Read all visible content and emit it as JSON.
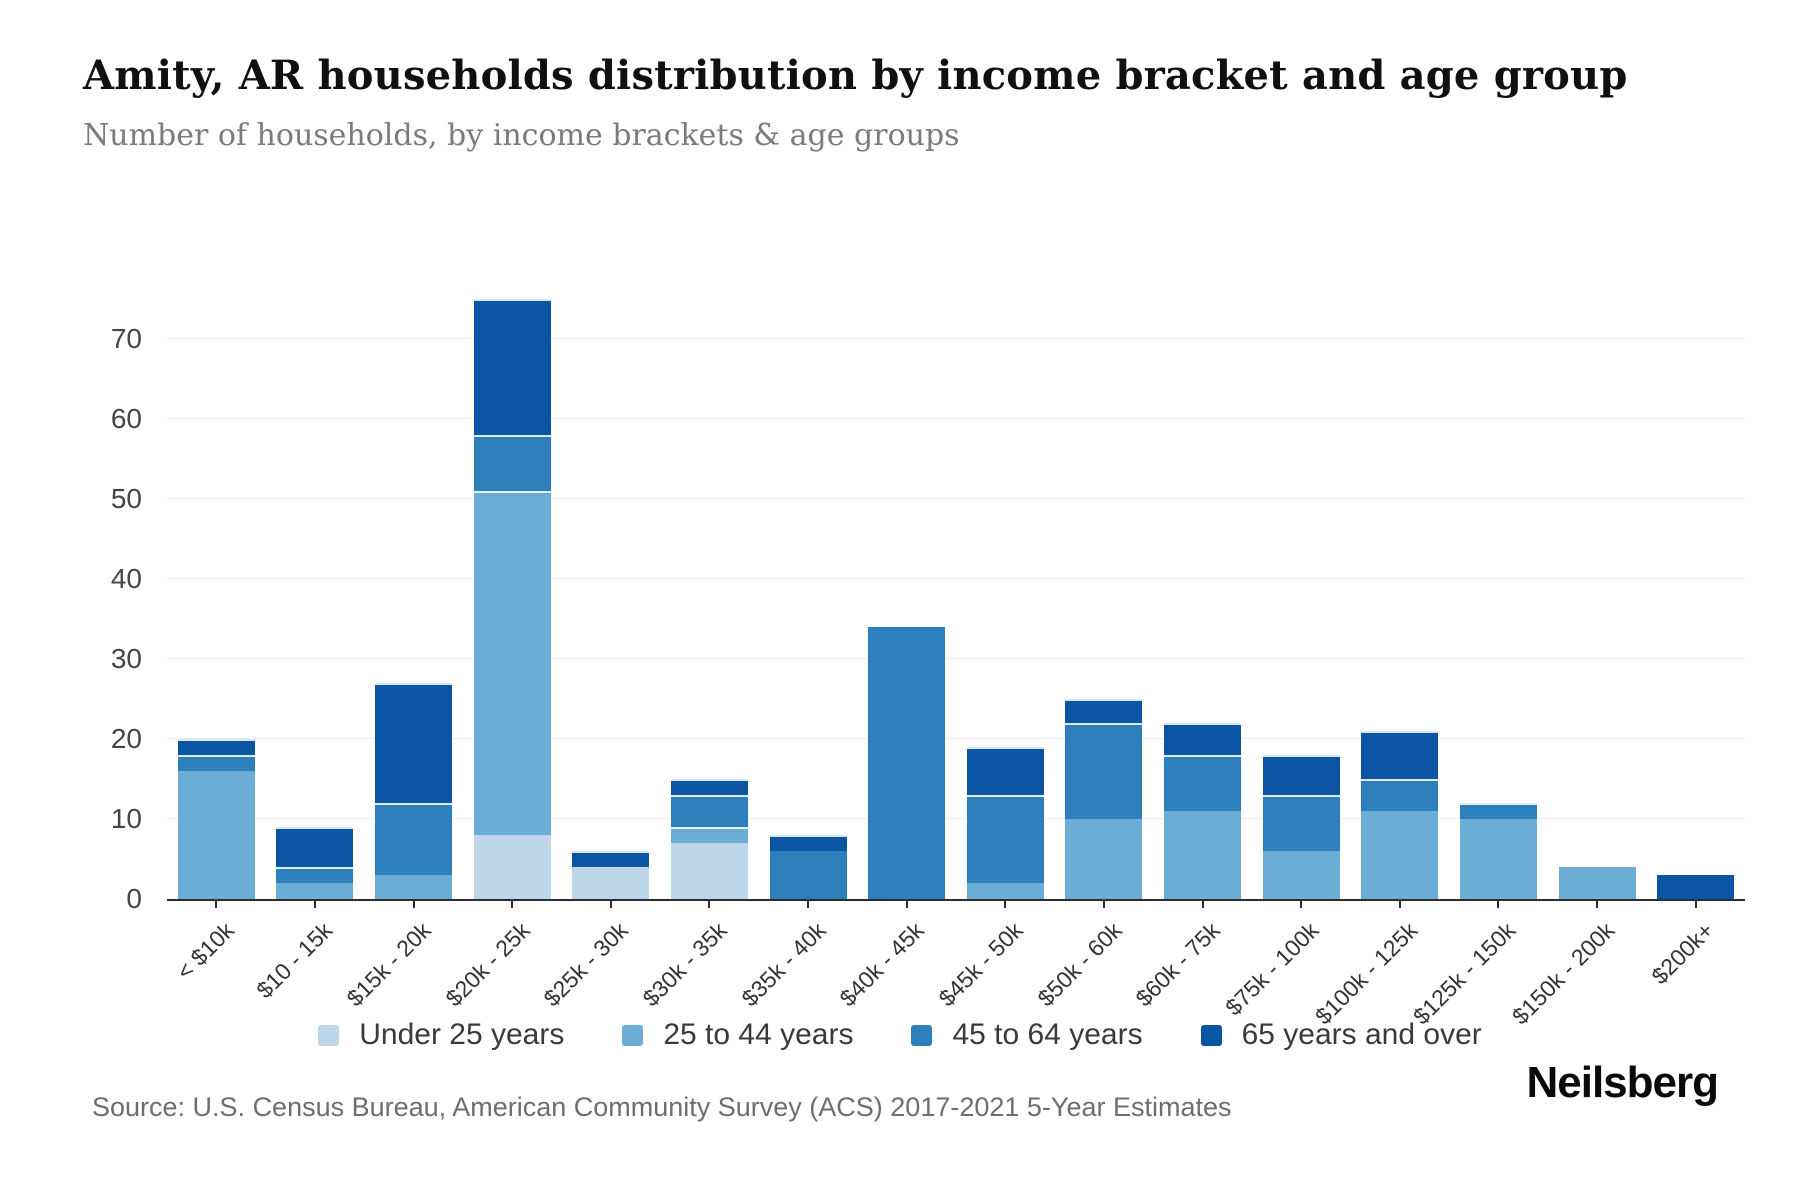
{
  "header": {
    "title": "Amity, AR households distribution by income bracket and age group",
    "subtitle": "Number of households, by income brackets & age groups"
  },
  "chart_data": {
    "type": "bar",
    "stacked": true,
    "title": "Amity, AR households distribution by income bracket and age group",
    "subtitle": "Number of households, by income brackets & age groups",
    "xlabel": "",
    "ylabel": "",
    "categories": [
      "< $10k",
      "$10 - 15k",
      "$15k - 20k",
      "$20k - 25k",
      "$25k - 30k",
      "$30k - 35k",
      "$35k - 40k",
      "$40k - 45k",
      "$45k - 50k",
      "$50k - 60k",
      "$60k - 75k",
      "$75k - 100k",
      "$100k - 125k",
      "$125k - 150k",
      "$150k - 200k",
      "$200k+"
    ],
    "series": [
      {
        "name": "Under 25 years",
        "color": "#bed6ea",
        "values": [
          0,
          0,
          0,
          8,
          4,
          7,
          0,
          0,
          0,
          0,
          0,
          0,
          0,
          0,
          0,
          0
        ]
      },
      {
        "name": "25 to 44 years",
        "color": "#6cadd5",
        "values": [
          16,
          2,
          3,
          43,
          0,
          2,
          0,
          0,
          2,
          10,
          11,
          6,
          11,
          10,
          4,
          0
        ]
      },
      {
        "name": "45 to 64 years",
        "color": "#2e80bd",
        "values": [
          2,
          2,
          9,
          7,
          0,
          4,
          6,
          34,
          11,
          12,
          7,
          7,
          4,
          2,
          0,
          0
        ]
      },
      {
        "name": "65 years and over",
        "color": "#0c55a5",
        "values": [
          2,
          5,
          15,
          17,
          2,
          2,
          2,
          0,
          6,
          3,
          4,
          5,
          6,
          0,
          0,
          3
        ]
      }
    ],
    "totals": [
      20,
      9,
      27,
      75,
      6,
      15,
      8,
      34,
      19,
      25,
      22,
      18,
      21,
      12,
      4,
      3
    ],
    "yticks": [
      0,
      10,
      20,
      30,
      40,
      50,
      60,
      70
    ],
    "ylim": [
      0,
      77.6
    ],
    "grid": true,
    "legend_position": "bottom"
  },
  "footer": {
    "source": "Source: U.S. Census Bureau, American Community Survey (ACS) 2017-2021 5-Year Estimates",
    "brand": "Neilsberg"
  }
}
